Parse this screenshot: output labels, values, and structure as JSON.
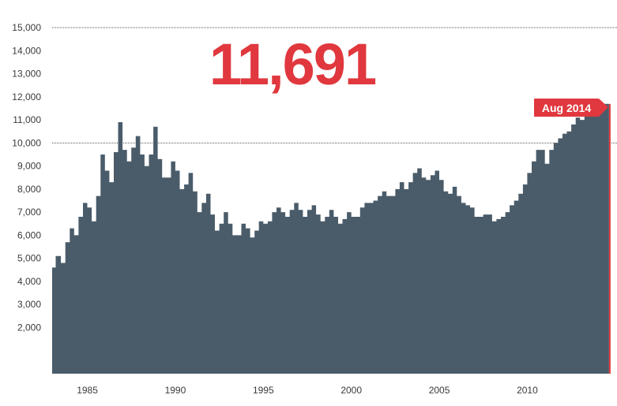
{
  "colors": {
    "area": "#4a5c6a",
    "accent": "#e0383e",
    "grid": "#555555",
    "text": "#3a3a3a"
  },
  "headline": {
    "value": "11,691"
  },
  "flag": {
    "label": "Aug 2014"
  },
  "chart_data": {
    "type": "area",
    "title": "",
    "xlabel": "",
    "ylabel": "",
    "xlim": [
      1983.0,
      2014.65
    ],
    "ylim": [
      0,
      15000
    ],
    "grid": "dotted lines at 10,000 and 15,000",
    "y_ticks": [
      2000,
      3000,
      4000,
      5000,
      6000,
      7000,
      8000,
      9000,
      10000,
      11000,
      12000,
      13000,
      14000,
      15000
    ],
    "y_tick_labels": [
      "2,000",
      "3,000",
      "4,000",
      "5,000",
      "6,000",
      "7,000",
      "8,000",
      "9,000",
      "10,000",
      "11,000",
      "12,000",
      "13,000",
      "14,000",
      "15,000"
    ],
    "x_ticks": [
      1985,
      1990,
      1995,
      2000,
      2005,
      2010
    ],
    "x_tick_labels": [
      "1985",
      "1990",
      "1995",
      "2000",
      "2005",
      "2010"
    ],
    "series": [
      {
        "x": [
          1983.0,
          1983.2,
          1983.5,
          1983.75,
          1984.0,
          1984.25,
          1984.5,
          1984.75,
          1985.0,
          1985.25,
          1985.5,
          1985.75,
          1986.0,
          1986.25,
          1986.5,
          1986.75,
          1987.0,
          1987.25,
          1987.5,
          1987.75,
          1988.0,
          1988.25,
          1988.5,
          1988.75,
          1989.0,
          1989.25,
          1989.5,
          1989.75,
          1990.0,
          1990.25,
          1990.5,
          1990.75,
          1991.0,
          1991.25,
          1991.5,
          1991.75,
          1992.0,
          1992.25,
          1992.5,
          1992.75,
          1993.0,
          1993.25,
          1993.5,
          1993.75,
          1994.0,
          1994.25,
          1994.5,
          1994.75,
          1995.0,
          1995.25,
          1995.5,
          1995.75,
          1996.0,
          1996.25,
          1996.5,
          1996.75,
          1997.0,
          1997.25,
          1997.5,
          1997.75,
          1998.0,
          1998.25,
          1998.5,
          1998.75,
          1999.0,
          1999.25,
          1999.5,
          1999.75,
          2000.0,
          2000.25,
          2000.5,
          2000.75,
          2001.0,
          2001.25,
          2001.5,
          2001.75,
          2002.0,
          2002.25,
          2002.5,
          2002.75,
          2003.0,
          2003.25,
          2003.5,
          2003.75,
          2004.0,
          2004.25,
          2004.5,
          2004.75,
          2005.0,
          2005.25,
          2005.5,
          2005.75,
          2006.0,
          2006.25,
          2006.5,
          2006.75,
          2007.0,
          2007.25,
          2007.5,
          2007.75,
          2008.0,
          2008.25,
          2008.5,
          2008.75,
          2009.0,
          2009.25,
          2009.5,
          2009.75,
          2010.0,
          2010.25,
          2010.5,
          2010.75,
          2011.0,
          2011.25,
          2011.5,
          2011.75,
          2012.0,
          2012.25,
          2012.5,
          2012.75,
          2013.0,
          2013.25,
          2013.5,
          2013.75,
          2014.0,
          2014.25,
          2014.5,
          2014.6
        ],
        "values": [
          4600,
          5100,
          4800,
          5700,
          6300,
          6000,
          6800,
          7400,
          7200,
          6600,
          7700,
          9500,
          8800,
          8300,
          9600,
          10900,
          9700,
          9200,
          9800,
          10300,
          9500,
          9000,
          9500,
          10700,
          9300,
          8500,
          8500,
          9200,
          8800,
          8000,
          8200,
          8700,
          7900,
          7000,
          7400,
          7800,
          6900,
          6200,
          6500,
          7000,
          6500,
          6000,
          6000,
          6500,
          6300,
          5900,
          6200,
          6600,
          6500,
          6600,
          7000,
          7200,
          7000,
          6800,
          7100,
          7400,
          7100,
          6800,
          7100,
          7300,
          6900,
          6600,
          6800,
          7100,
          6800,
          6500,
          6700,
          7000,
          6800,
          6800,
          7200,
          7400,
          7400,
          7500,
          7700,
          7900,
          7700,
          7700,
          8000,
          8300,
          8000,
          8300,
          8700,
          8900,
          8500,
          8400,
          8600,
          8800,
          8400,
          7900,
          7800,
          8100,
          7700,
          7400,
          7300,
          7200,
          6800,
          6800,
          6900,
          6900,
          6600,
          6700,
          6800,
          7000,
          7300,
          7500,
          7800,
          8200,
          8700,
          9200,
          9700,
          9700,
          9100,
          9700,
          10000,
          10200,
          10400,
          10500,
          10800,
          11100,
          11000,
          11200,
          11400,
          11500,
          11600,
          11691,
          11691,
          11691
        ]
      }
    ]
  }
}
